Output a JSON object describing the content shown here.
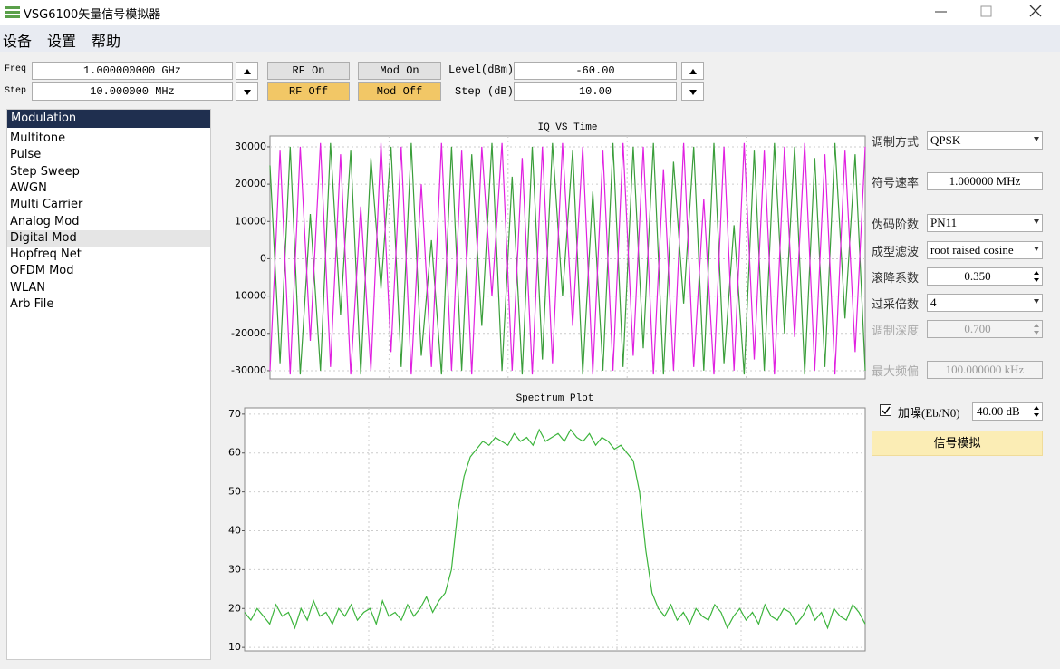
{
  "window": {
    "title": "VSG6100矢量信号模拟器"
  },
  "menu": [
    "设备",
    "设置",
    "帮助"
  ],
  "toolbar": {
    "freq_label": "Freq",
    "freq_value": "1.000000000 GHz",
    "step_label": "Step",
    "step_value": "10.000000 MHz",
    "rf_on": "RF On",
    "rf_off": "RF Off",
    "mod_on": "Mod On",
    "mod_off": "Mod Off",
    "level_label": "Level(dBm)",
    "level_value": "-60.00",
    "level_step_label": "Step (dB)",
    "level_step_value": "10.00"
  },
  "modulation": {
    "header": "Modulation",
    "items": [
      "Multitone",
      "Pulse",
      "Step Sweep",
      "AWGN",
      "Multi Carrier",
      "Analog Mod",
      "Digital Mod",
      "Hopfreq Net",
      "OFDM Mod",
      "WLAN",
      "Arb File"
    ],
    "selected": 6
  },
  "settings": {
    "rows": [
      {
        "label": "调制方式",
        "value": "QPSK",
        "kind": "combo",
        "enabled": true
      },
      {
        "label": "符号速率",
        "value": "1.000000 MHz",
        "kind": "input",
        "enabled": true
      },
      {
        "label": "伪码阶数",
        "value": "PN11",
        "kind": "combo",
        "enabled": true
      },
      {
        "label": "成型滤波",
        "value": "root raised cosine",
        "kind": "combo",
        "enabled": true
      },
      {
        "label": "滚降系数",
        "value": "0.350",
        "kind": "spin",
        "enabled": true
      },
      {
        "label": "过采倍数",
        "value": "4",
        "kind": "combo",
        "enabled": true
      },
      {
        "label": "调制深度",
        "value": "0.700",
        "kind": "spin",
        "enabled": false
      },
      {
        "label": "最大频偏",
        "value": "100.000000 kHz",
        "kind": "input",
        "enabled": false
      }
    ],
    "noise_label": "加噪(Eb/N0)",
    "noise_value": "40.00 dB",
    "noise_checked": true,
    "simulate": "信号模拟"
  },
  "chart_data": [
    {
      "type": "line",
      "title": "IQ VS Time",
      "ylim": [
        -32200,
        32900
      ],
      "yticks": [
        -30000,
        -20000,
        -10000,
        0,
        10000,
        20000,
        30000
      ],
      "grid": true,
      "series": [
        {
          "color": "#3a9e3a",
          "values": [
            25000,
            -28000,
            30000,
            -31000,
            12000,
            -30000,
            31000,
            -15000,
            29000,
            -31000,
            27000,
            -8000,
            30000,
            -29000,
            31000,
            -26000,
            5000,
            -31000,
            30000,
            -30000,
            28000,
            -18000,
            31000,
            -30000,
            22000,
            -31000,
            30000,
            -27000,
            31000,
            -10000,
            29000,
            -31000,
            18000,
            -30000,
            31000,
            -29000,
            30000,
            -24000,
            31000,
            -31000,
            26000,
            -12000,
            30000,
            -30000,
            31000,
            -28000,
            9000,
            -31000,
            29000,
            -30000,
            31000,
            -20000,
            30000,
            -31000,
            27000,
            -29000,
            31000,
            -16000,
            28000,
            -30000
          ]
        },
        {
          "color": "#e020e0",
          "values": [
            -30000,
            29000,
            -31000,
            30000,
            -22000,
            31000,
            -29000,
            28000,
            -31000,
            14000,
            -30000,
            31000,
            -25000,
            30000,
            -31000,
            20000,
            -29000,
            31000,
            -30000,
            29000,
            -31000,
            30000,
            -10000,
            31000,
            -30000,
            27000,
            -31000,
            30000,
            -28000,
            31000,
            -18000,
            30000,
            -31000,
            29000,
            -30000,
            31000,
            -26000,
            30000,
            -31000,
            24000,
            -30000,
            31000,
            -29000,
            16000,
            -31000,
            30000,
            -30000,
            31000,
            -27000,
            29000,
            -31000,
            30000,
            -21000,
            31000,
            -30000,
            28000,
            -31000,
            29000,
            -25000,
            30000
          ]
        }
      ]
    },
    {
      "type": "line",
      "title": "Spectrum Plot",
      "ylim": [
        9.1,
        71.6
      ],
      "yticks": [
        10,
        20,
        30,
        40,
        50,
        60,
        70
      ],
      "grid": true,
      "series": [
        {
          "color": "#3cb43c",
          "values": [
            19,
            17,
            20,
            18,
            16,
            21,
            18,
            19,
            15,
            20,
            17,
            22,
            18,
            19,
            16,
            20,
            18,
            21,
            17,
            19,
            20,
            16,
            22,
            18,
            19,
            17,
            21,
            18,
            20,
            23,
            19,
            22,
            24,
            30,
            45,
            54,
            59,
            61,
            63,
            62,
            64,
            63,
            62,
            65,
            63,
            64,
            62,
            66,
            63,
            64,
            65,
            63,
            66,
            64,
            63,
            65,
            62,
            64,
            63,
            61,
            62,
            60,
            58,
            50,
            35,
            24,
            20,
            18,
            21,
            17,
            19,
            16,
            20,
            18,
            17,
            21,
            19,
            15,
            18,
            20,
            17,
            19,
            16,
            21,
            18,
            17,
            20,
            19,
            16,
            18,
            21,
            17,
            19,
            15,
            20,
            18,
            17,
            21,
            19,
            16
          ]
        }
      ]
    }
  ]
}
